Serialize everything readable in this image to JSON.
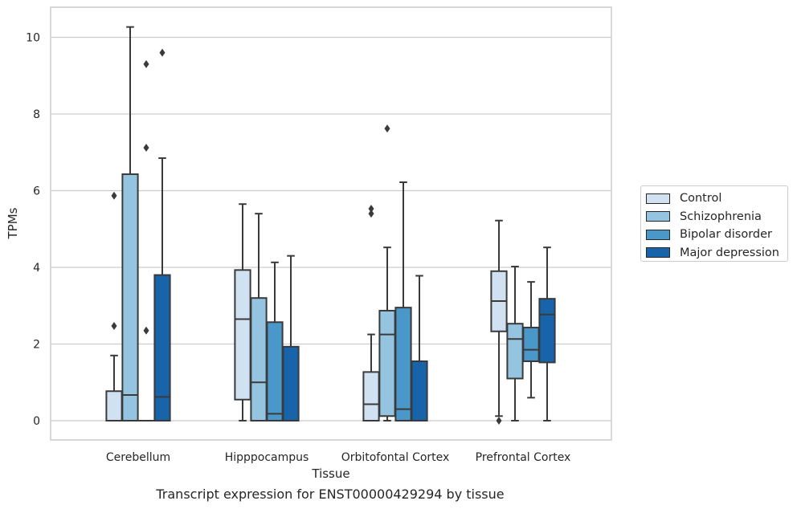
{
  "chart_data": {
    "type": "boxplot",
    "caption": "Transcript expression for ENST00000429294 by tissue",
    "xlabel": "Tissue",
    "ylabel": "TPMs",
    "ylim": [
      -0.5,
      10.8
    ],
    "yticks": [
      0,
      2,
      4,
      6,
      8,
      10
    ],
    "grid": true,
    "legend_position": "right",
    "categories": [
      "Cerebellum",
      "Hipppocampus",
      "Orbitofontal Cortex",
      "Prefrontal Cortex"
    ],
    "series": [
      {
        "name": "Control",
        "color": "#d0e1f2",
        "boxes": [
          {
            "whislo": 0,
            "q1": 0,
            "med": 0,
            "q3": 0.77,
            "whishi": 1.7,
            "fliers": [
              2.47,
              5.87
            ]
          },
          {
            "whislo": 0,
            "q1": 0.55,
            "med": 2.65,
            "q3": 3.93,
            "whishi": 5.65,
            "fliers": []
          },
          {
            "whislo": 0,
            "q1": 0,
            "med": 0.43,
            "q3": 1.27,
            "whishi": 2.25,
            "fliers": [
              5.4,
              5.53
            ]
          },
          {
            "whislo": 0.12,
            "q1": 2.33,
            "med": 3.12,
            "q3": 3.9,
            "whishi": 5.22,
            "fliers": [
              0
            ]
          }
        ]
      },
      {
        "name": "Schizophrenia",
        "color": "#94c4df",
        "boxes": [
          {
            "whislo": 0,
            "q1": 0,
            "med": 0.67,
            "q3": 6.43,
            "whishi": 10.27,
            "fliers": []
          },
          {
            "whislo": 0,
            "q1": 0,
            "med": 1.0,
            "q3": 3.2,
            "whishi": 5.4,
            "fliers": []
          },
          {
            "whislo": 0,
            "q1": 0.12,
            "med": 2.25,
            "q3": 2.87,
            "whishi": 4.52,
            "fliers": [
              7.62
            ]
          },
          {
            "whislo": 0,
            "q1": 1.1,
            "med": 2.13,
            "q3": 2.53,
            "whishi": 4.02,
            "fliers": []
          }
        ]
      },
      {
        "name": "Bipolar disorder",
        "color": "#4a98c9",
        "boxes": [
          {
            "whislo": 0,
            "q1": 0,
            "med": 0,
            "q3": 0,
            "whishi": 0,
            "fliers": [
              2.35,
              7.12,
              9.3
            ]
          },
          {
            "whislo": 0,
            "q1": 0,
            "med": 0.18,
            "q3": 2.57,
            "whishi": 4.13,
            "fliers": []
          },
          {
            "whislo": 0,
            "q1": 0,
            "med": 0.3,
            "q3": 2.95,
            "whishi": 6.22,
            "fliers": []
          },
          {
            "whislo": 0.6,
            "q1": 1.55,
            "med": 1.85,
            "q3": 2.43,
            "whishi": 3.62,
            "fliers": []
          }
        ]
      },
      {
        "name": "Major depression",
        "color": "#1764ab",
        "boxes": [
          {
            "whislo": 0,
            "q1": 0,
            "med": 0.62,
            "q3": 3.8,
            "whishi": 6.85,
            "fliers": [
              9.6
            ]
          },
          {
            "whislo": 0,
            "q1": 0,
            "med": 0,
            "q3": 1.93,
            "whishi": 4.3,
            "fliers": []
          },
          {
            "whislo": 0,
            "q1": 0,
            "med": 0,
            "q3": 1.55,
            "whishi": 3.78,
            "fliers": []
          },
          {
            "whislo": 0,
            "q1": 1.52,
            "med": 2.77,
            "q3": 3.18,
            "whishi": 4.52,
            "fliers": []
          }
        ]
      }
    ]
  }
}
